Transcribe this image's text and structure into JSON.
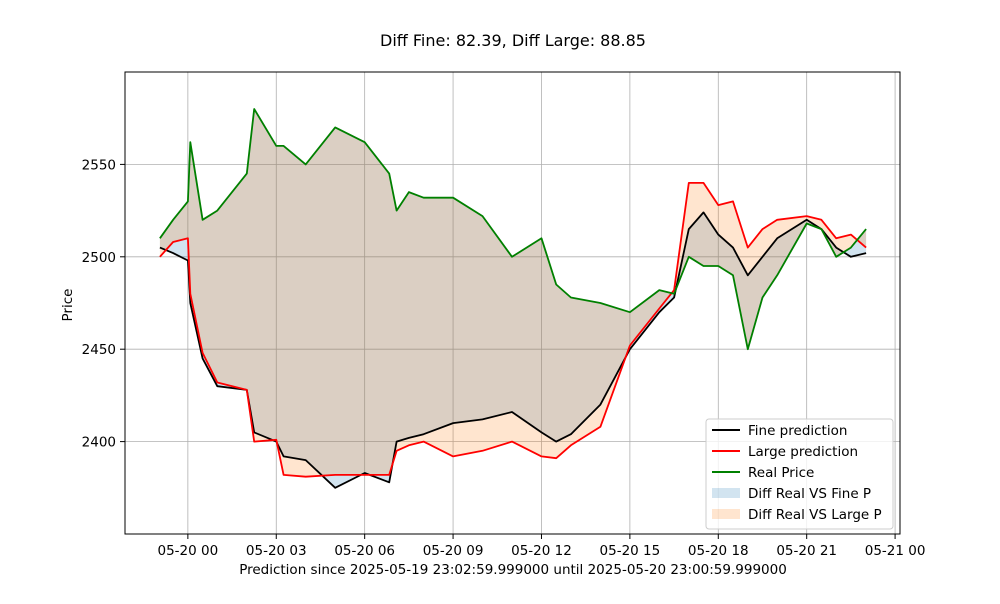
{
  "colors": {
    "fine": "#000000",
    "large": "#ff0000",
    "real": "#008000",
    "fill_fine": "#1f77b4",
    "fill_large": "#ff7f0e",
    "grid": "#b0b0b0"
  },
  "chart_data": {
    "type": "line",
    "title": "Diff Fine: 82.39, Diff Large: 88.85",
    "xlabel": "Prediction since 2025-05-19 23:02:59.999000 until 2025-05-20 23:00:59.999000",
    "ylabel": "Price",
    "xlim": [
      "2025-05-19 21:52",
      "2025-05-21 00:10"
    ],
    "ylim": [
      2350,
      2600
    ],
    "x_ticks": [
      "2025-05-20 00:00",
      "2025-05-20 03:00",
      "2025-05-20 06:00",
      "2025-05-20 09:00",
      "2025-05-20 12:00",
      "2025-05-20 15:00",
      "2025-05-20 18:00",
      "2025-05-20 21:00",
      "2025-05-21 00:00"
    ],
    "x_tick_labels": [
      "05-20 00",
      "05-20 03",
      "05-20 06",
      "05-20 09",
      "05-20 12",
      "05-20 15",
      "05-20 18",
      "05-20 21",
      "05-21 00"
    ],
    "y_ticks": [
      2400,
      2450,
      2500,
      2550
    ],
    "grid": true,
    "legend_position": "lower right",
    "x": [
      "2025-05-19 23:03",
      "2025-05-19 23:30",
      "2025-05-20 00:00",
      "2025-05-20 00:05",
      "2025-05-20 00:30",
      "2025-05-20 01:00",
      "2025-05-20 02:00",
      "2025-05-20 02:15",
      "2025-05-20 03:00",
      "2025-05-20 03:15",
      "2025-05-20 04:00",
      "2025-05-20 05:00",
      "2025-05-20 06:00",
      "2025-05-20 06:50",
      "2025-05-20 07:05",
      "2025-05-20 07:30",
      "2025-05-20 08:00",
      "2025-05-20 09:00",
      "2025-05-20 10:00",
      "2025-05-20 11:00",
      "2025-05-20 12:00",
      "2025-05-20 12:30",
      "2025-05-20 13:00",
      "2025-05-20 14:00",
      "2025-05-20 15:00",
      "2025-05-20 16:00",
      "2025-05-20 16:30",
      "2025-05-20 17:00",
      "2025-05-20 17:30",
      "2025-05-20 18:00",
      "2025-05-20 18:30",
      "2025-05-20 19:00",
      "2025-05-20 19:30",
      "2025-05-20 20:00",
      "2025-05-20 21:00",
      "2025-05-20 21:30",
      "2025-05-20 22:00",
      "2025-05-20 22:30",
      "2025-05-20 23:01"
    ],
    "series": [
      {
        "name": "Fine prediction",
        "color": "#000000",
        "values": [
          2505,
          2502,
          2498,
          2475,
          2445,
          2430,
          2428,
          2405,
          2400,
          2392,
          2390,
          2375,
          2383,
          2378,
          2400,
          2402,
          2404,
          2410,
          2412,
          2416,
          2405,
          2400,
          2404,
          2420,
          2450,
          2470,
          2478,
          2515,
          2524,
          2512,
          2505,
          2490,
          2500,
          2510,
          2520,
          2515,
          2505,
          2500,
          2502
        ]
      },
      {
        "name": "Large prediction",
        "color": "#ff0000",
        "values": [
          2500,
          2508,
          2510,
          2480,
          2448,
          2432,
          2428,
          2400,
          2401,
          2382,
          2381,
          2382,
          2382,
          2382,
          2395,
          2398,
          2400,
          2392,
          2395,
          2400,
          2392,
          2391,
          2398,
          2408,
          2452,
          2472,
          2482,
          2540,
          2540,
          2528,
          2530,
          2505,
          2515,
          2520,
          2522,
          2520,
          2510,
          2512,
          2505
        ]
      },
      {
        "name": "Real Price",
        "color": "#008000",
        "values": [
          2510,
          2520,
          2530,
          2562,
          2520,
          2525,
          2545,
          2580,
          2560,
          2560,
          2550,
          2570,
          2562,
          2545,
          2525,
          2535,
          2532,
          2532,
          2522,
          2500,
          2510,
          2485,
          2478,
          2475,
          2470,
          2482,
          2480,
          2500,
          2495,
          2495,
          2490,
          2450,
          2478,
          2490,
          2518,
          2515,
          2500,
          2505,
          2515
        ]
      }
    ],
    "fills": [
      {
        "name": "Diff Real VS Fine P",
        "between": [
          "Real Price",
          "Fine prediction"
        ],
        "color": "#1f77b4",
        "alpha": 0.2
      },
      {
        "name": "Diff Real VS Large P",
        "between": [
          "Real Price",
          "Large prediction"
        ],
        "color": "#ff7f0e",
        "alpha": 0.2
      }
    ]
  }
}
